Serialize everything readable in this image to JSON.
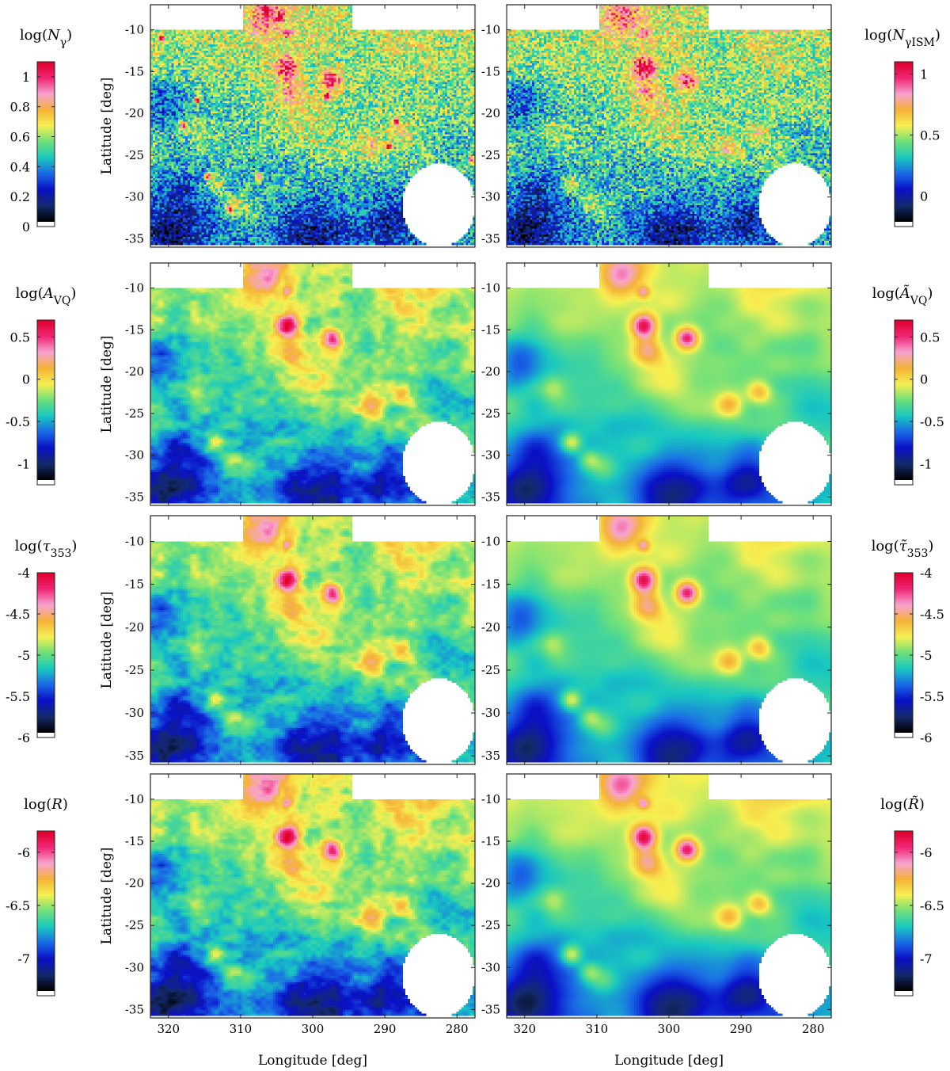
{
  "chart_data": {
    "type": "heatmap",
    "colormap": [
      "#000000",
      "#142a6e",
      "#0a10c8",
      "#1a6ae6",
      "#18c8c0",
      "#6ee07a",
      "#f6f052",
      "#f5b238",
      "#f7a3d0",
      "#f02575",
      "#e0002a"
    ],
    "xlabel": "Longitude [deg]",
    "ylabel": "Latitude [deg]",
    "xlim": [
      322.5,
      277.5
    ],
    "ylim": [
      -36,
      -7
    ],
    "x_ticks": [
      320,
      310,
      300,
      290,
      280
    ],
    "y_ticks": [
      -10,
      -15,
      -20,
      -25,
      -30,
      -35
    ],
    "x_tick_labels": [
      "320",
      "310",
      "300",
      "290",
      "280"
    ],
    "y_tick_labels": [
      "-10",
      "-15",
      "-20",
      "-25",
      "-30",
      "-35"
    ],
    "masked_region": {
      "circle_center_lon": 282.5,
      "circle_center_lat": -31,
      "circle_radius_deg": 5,
      "notch_lon": [
        309.5,
        294.5
      ],
      "notch_top_lat": -10
    },
    "features": [
      {
        "lon": 303.5,
        "lat": -14.5,
        "level": 0.95,
        "size_deg": 1.2
      },
      {
        "lon": 297.5,
        "lat": -16,
        "level": 0.97,
        "size_deg": 1.1
      },
      {
        "lon": 303,
        "lat": -17.5,
        "level": 0.78,
        "size_deg": 1.5
      },
      {
        "lon": 306.5,
        "lat": -8.5,
        "level": 0.8,
        "size_deg": 2
      },
      {
        "lon": 303.5,
        "lat": -10.5,
        "level": 0.75,
        "size_deg": 0.6
      },
      {
        "lon": 287.5,
        "lat": -22.5,
        "level": 0.76,
        "size_deg": 1.2
      },
      {
        "lon": 291.5,
        "lat": -24,
        "level": 0.74,
        "size_deg": 1.3
      },
      {
        "lon": 313.5,
        "lat": -28.5,
        "level": 0.78,
        "size_deg": 1
      },
      {
        "lon": 311,
        "lat": -30.5,
        "level": 0.7,
        "size_deg": 1
      },
      {
        "lon": 309,
        "lat": -31.5,
        "level": 0.66,
        "size_deg": 1.3
      },
      {
        "lon": 316,
        "lat": -22,
        "level": 0.66,
        "size_deg": 1.2
      },
      {
        "lon": 301,
        "lat": -21,
        "level": 0.64,
        "size_deg": 3
      },
      {
        "lon": 296,
        "lat": -24.5,
        "level": 0.64,
        "size_deg": 2
      },
      {
        "lon": 300,
        "lat": -11,
        "level": 0.62,
        "size_deg": 2.5
      },
      {
        "lon": 285,
        "lat": -14,
        "level": 0.57,
        "size_deg": 2
      },
      {
        "lon": 318,
        "lat": -30,
        "level": 0.42,
        "size_deg": 3.5
      },
      {
        "lon": 320,
        "lat": -35,
        "level": 0.28,
        "size_deg": 3
      },
      {
        "lon": 300,
        "lat": -34.5,
        "level": 0.3,
        "size_deg": 3
      },
      {
        "lon": 320,
        "lat": -19,
        "level": 0.33,
        "size_deg": 2.5
      },
      {
        "lon": 289,
        "lat": -33,
        "level": 0.32,
        "size_deg": 2.5
      }
    ],
    "point_sources": [
      {
        "lon": 321,
        "lat": -11
      },
      {
        "lon": 316,
        "lat": -18.5
      },
      {
        "lon": 318,
        "lat": -21.5
      },
      {
        "lon": 306.5,
        "lat": -7.5
      },
      {
        "lon": 304.5,
        "lat": -8.5
      },
      {
        "lon": 307.5,
        "lat": -27.5
      },
      {
        "lon": 314.5,
        "lat": -27.5
      },
      {
        "lon": 311.5,
        "lat": -31.5
      },
      {
        "lon": 288.5,
        "lat": -21
      },
      {
        "lon": 289.5,
        "lat": -24
      },
      {
        "lon": 278,
        "lat": -25.5
      },
      {
        "lon": 298,
        "lat": -18
      }
    ],
    "panels": [
      {
        "id": "n-gamma",
        "colorbar_title_pre": "log(",
        "colorbar_title_sym": "N",
        "colorbar_title_sub": "γ",
        "colorbar_title_post": ")",
        "colorbar_range": [
          0,
          1.1
        ],
        "colorbar_ticks": [
          0,
          0.2,
          0.4,
          0.6,
          0.8,
          1
        ],
        "colorbar_tick_labels": [
          "0",
          "0.2",
          "0.4",
          "0.6",
          "0.8",
          "1"
        ],
        "mode": "noisy",
        "point_sources": true
      },
      {
        "id": "n-gamma-ism",
        "colorbar_title_pre": "log(",
        "colorbar_title_sym": "N",
        "colorbar_title_sub": "γISM",
        "colorbar_title_post": ")",
        "colorbar_range": [
          -0.25,
          1.1
        ],
        "colorbar_ticks": [
          0,
          0.5,
          1
        ],
        "colorbar_tick_labels": [
          "0",
          "0.5",
          "1"
        ],
        "mode": "noisy",
        "point_sources": false
      },
      {
        "id": "a-vq",
        "colorbar_title_pre": "log(",
        "colorbar_title_sym": "A",
        "colorbar_title_sub": "VQ",
        "colorbar_title_post": ")",
        "colorbar_range": [
          -1.25,
          0.7
        ],
        "colorbar_ticks": [
          -1,
          -0.5,
          0,
          0.5
        ],
        "colorbar_tick_labels": [
          "-1",
          "-0.5",
          "0",
          "0.5"
        ],
        "mode": "detailed",
        "point_sources": false
      },
      {
        "id": "a-vq-smoothed",
        "colorbar_title_pre": "log(",
        "colorbar_title_sym": "Ã",
        "colorbar_title_sub": "VQ",
        "colorbar_title_post": ")",
        "colorbar_range": [
          -1.25,
          0.7
        ],
        "colorbar_ticks": [
          -1,
          -0.5,
          0,
          0.5
        ],
        "colorbar_tick_labels": [
          "-1",
          "-0.5",
          "0",
          "0.5"
        ],
        "mode": "smooth",
        "point_sources": false
      },
      {
        "id": "tau-353",
        "colorbar_title_pre": "log(",
        "colorbar_title_sym": "τ",
        "colorbar_title_sub": "353",
        "colorbar_title_post": ")",
        "colorbar_range": [
          -6,
          -4
        ],
        "colorbar_ticks": [
          -6,
          -5.5,
          -5,
          -4.5,
          -4
        ],
        "colorbar_tick_labels": [
          "-6",
          "-5.5",
          "-5",
          "-4.5",
          "-4"
        ],
        "mode": "detailed",
        "point_sources": false
      },
      {
        "id": "tau-353-smoothed",
        "colorbar_title_pre": "log(",
        "colorbar_title_sym": "τ̃",
        "colorbar_title_sub": "353",
        "colorbar_title_post": ")",
        "colorbar_range": [
          -6,
          -4
        ],
        "colorbar_ticks": [
          -6,
          -5.5,
          -5,
          -4.5,
          -4
        ],
        "colorbar_tick_labels": [
          "-6",
          "-5.5",
          "-5",
          "-4.5",
          "-4"
        ],
        "mode": "smooth",
        "point_sources": false
      },
      {
        "id": "r-ratio",
        "colorbar_title_pre": "log(",
        "colorbar_title_sym": "R",
        "colorbar_title_sub": "",
        "colorbar_title_post": ")",
        "colorbar_range": [
          -7.35,
          -5.8
        ],
        "colorbar_ticks": [
          -7,
          -6.5,
          -6
        ],
        "colorbar_tick_labels": [
          "-7",
          "-6.5",
          "-6"
        ],
        "mode": "detailed_warm",
        "point_sources": false
      },
      {
        "id": "r-ratio-smoothed",
        "colorbar_title_pre": "log(",
        "colorbar_title_sym": "R̃",
        "colorbar_title_sub": "",
        "colorbar_title_post": ")",
        "colorbar_range": [
          -7.35,
          -5.8
        ],
        "colorbar_ticks": [
          -7,
          -6.5,
          -6
        ],
        "colorbar_tick_labels": [
          "-7",
          "-6.5",
          "-6"
        ],
        "mode": "smooth_warm",
        "point_sources": false
      }
    ]
  }
}
